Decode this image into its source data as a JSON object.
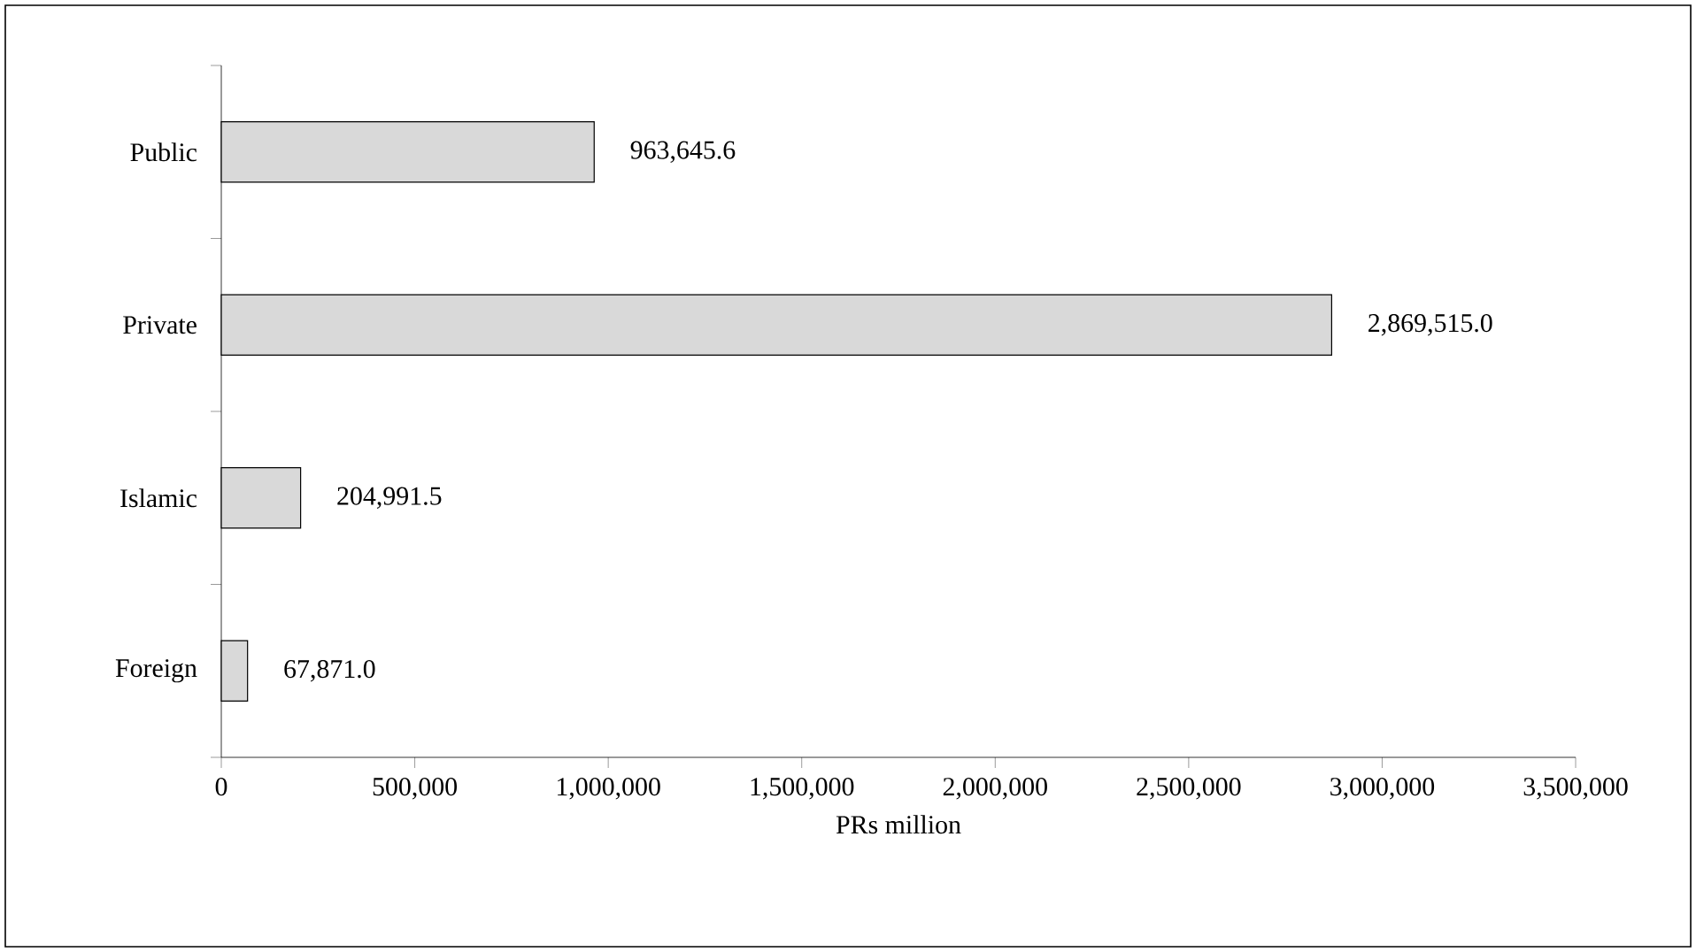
{
  "chart_data": {
    "type": "bar",
    "orientation": "horizontal",
    "categories": [
      "Public",
      "Private",
      "Islamic",
      "Foreign"
    ],
    "values": [
      963645.6,
      2869515.0,
      204991.5,
      67871.0
    ],
    "value_labels": [
      "963,645.6",
      "2,869,515.0",
      "204,991.5",
      "67,871.0"
    ],
    "color": "#d9d9d9",
    "xlabel": "PRs million",
    "xlim": [
      0,
      3500000
    ],
    "xticks": [
      0,
      {
        "value": 500000,
        "label": "500,000"
      },
      {
        "value": 1000000,
        "label": "1,000,000"
      },
      {
        "value": 1500000,
        "label": "1,500,000"
      },
      {
        "value": 2000000,
        "label": "2,000,000"
      },
      {
        "value": 2500000,
        "label": "2,500,000"
      },
      {
        "value": 3000000,
        "label": "3,000,000"
      },
      {
        "value": 3500000,
        "label": "3,500,000"
      }
    ],
    "grid": false
  }
}
